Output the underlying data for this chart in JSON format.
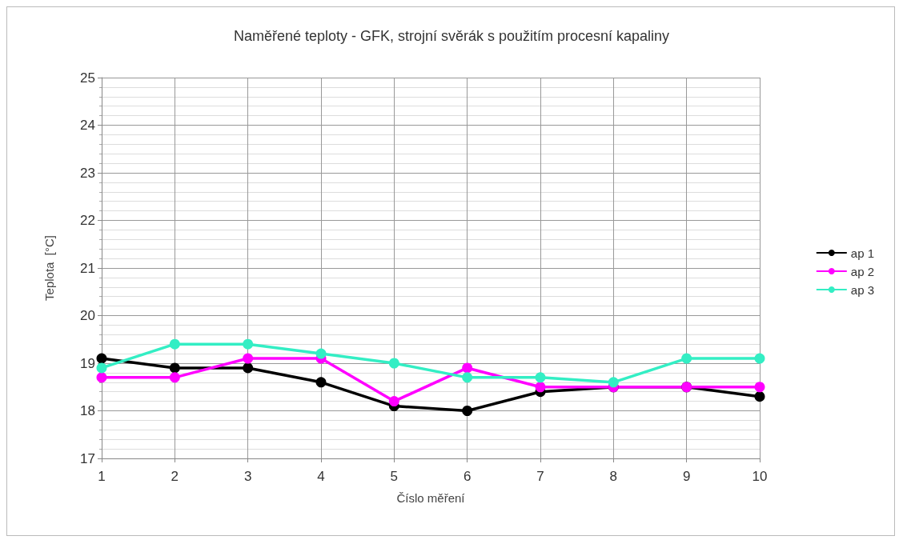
{
  "chart_data": {
    "type": "line",
    "title": "Naměřené teploty - GFK, strojní svěrák s použitím procesní kapaliny",
    "xlabel": "Číslo měření",
    "ylabel": "Teplota  [°C]",
    "categories": [
      "1",
      "2",
      "3",
      "4",
      "5",
      "6",
      "7",
      "8",
      "9",
      "10"
    ],
    "series": [
      {
        "name": "ap 1",
        "color": "#000000",
        "values": [
          19.1,
          18.9,
          18.9,
          18.6,
          18.1,
          18.0,
          18.4,
          18.5,
          18.5,
          18.3
        ]
      },
      {
        "name": "ap 2",
        "color": "#ff00ff",
        "values": [
          18.7,
          18.7,
          19.1,
          19.1,
          18.2,
          18.9,
          18.5,
          18.5,
          18.5,
          18.5
        ]
      },
      {
        "name": "ap 3",
        "color": "#33eec4",
        "values": [
          18.9,
          19.4,
          19.4,
          19.2,
          19.0,
          18.7,
          18.7,
          18.6,
          19.1,
          19.1
        ]
      }
    ],
    "ylim": [
      17,
      25
    ],
    "yticks": [
      17,
      18,
      19,
      20,
      21,
      22,
      23,
      24,
      25
    ],
    "grid": true,
    "legend": "right",
    "marker": "circle",
    "line_style": "solid"
  }
}
